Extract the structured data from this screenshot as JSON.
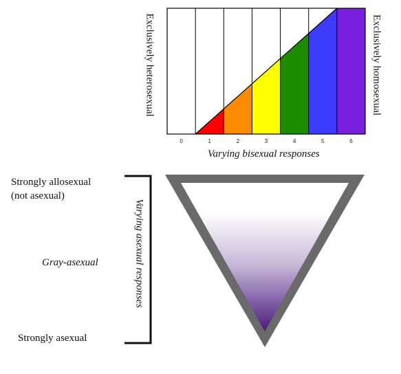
{
  "kinsey": {
    "left_label": "Exclusively heterosexual",
    "right_label": "Exclusively homosexual",
    "axis_title": "Varying bisexual responses",
    "ticks": [
      "0",
      "1",
      "2",
      "3",
      "4",
      "5",
      "6"
    ],
    "band_colors": [
      "#ffffff",
      "#ff0000",
      "#ff8c00",
      "#ffff00",
      "#1e8c00",
      "#3c3cff",
      "#7b1fe0"
    ]
  },
  "asexual": {
    "top_label_line1": "Strongly allosexual",
    "top_label_line2": "(not asexual)",
    "middle_label": "Gray-asexual",
    "bottom_label": "Strongly asexual",
    "axis_title": "Varying asexual responses",
    "gradient_colors": [
      "#ffffff",
      "#c7b8d8",
      "#4a1a7e"
    ],
    "border_color": "#6a6a6a"
  }
}
